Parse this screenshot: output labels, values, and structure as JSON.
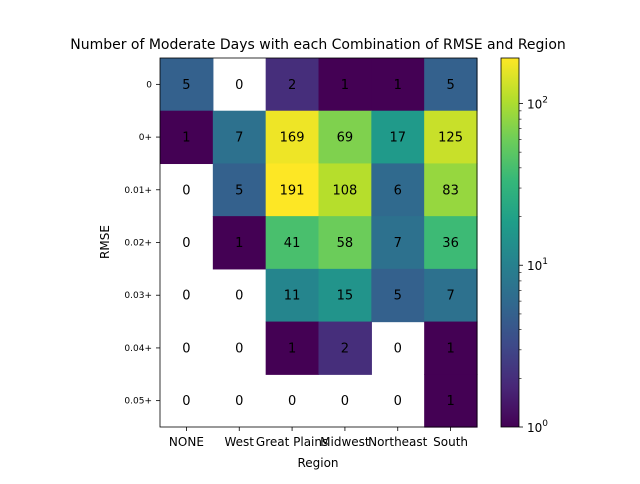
{
  "chart_data": {
    "type": "heatmap",
    "title": "Number of Moderate Days with each Combination of RMSE and Region",
    "xlabel": "Region",
    "ylabel": "RMSE",
    "x_categories": [
      "NONE",
      "West",
      "Great Plains",
      "Midwest",
      "Northeast",
      "South"
    ],
    "y_categories": [
      "0",
      "0+",
      "0.01+",
      "0.02+",
      "0.03+",
      "0.04+",
      "0.05+"
    ],
    "values": [
      [
        5,
        0,
        2,
        1,
        1,
        5
      ],
      [
        1,
        7,
        169,
        69,
        17,
        125
      ],
      [
        0,
        5,
        191,
        108,
        6,
        83
      ],
      [
        0,
        1,
        41,
        58,
        7,
        36
      ],
      [
        0,
        0,
        11,
        15,
        5,
        7
      ],
      [
        0,
        0,
        1,
        2,
        0,
        1
      ],
      [
        0,
        0,
        0,
        0,
        0,
        1
      ]
    ],
    "color_scale": "log",
    "colormap": "viridis",
    "zero_cells_color": "#ffffff",
    "colorbar": {
      "range": [
        1,
        191
      ],
      "ticks": [
        {
          "value": 1,
          "base": "10",
          "exp": "0"
        },
        {
          "value": 10,
          "base": "10",
          "exp": "1"
        },
        {
          "value": 100,
          "base": "10",
          "exp": "2"
        }
      ]
    },
    "grid": false,
    "legend": "colorbar-right"
  }
}
